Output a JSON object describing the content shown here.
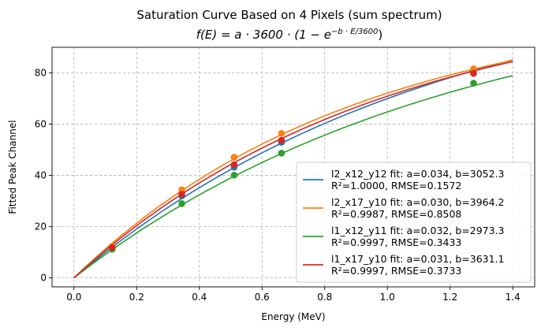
{
  "chart_data": {
    "type": "line",
    "title": "Saturation Curve Based on 4 Pixels (sum spectrum)",
    "subtitle": {
      "pre": "f(E) = a · 3600 · (1 − e",
      "sup": "−b · E/3600",
      "post": ")"
    },
    "xlabel": "Energy (MeV)",
    "ylabel": "Fitted Peak Channel",
    "xlim": [
      -0.07,
      1.47
    ],
    "ylim": [
      -3.5,
      90
    ],
    "xticks": [
      0.0,
      0.2,
      0.4,
      0.6,
      0.8,
      1.0,
      1.2,
      1.4
    ],
    "xtick_labels": [
      "0.0",
      "0.2",
      "0.4",
      "0.6",
      "0.8",
      "1.0",
      "1.2",
      "1.4"
    ],
    "yticks": [
      0,
      20,
      40,
      60,
      80
    ],
    "ytick_labels": [
      "0",
      "20",
      "40",
      "60",
      "80"
    ],
    "grid": true,
    "legend_position": "lower-right",
    "fit_function": "a*3600*(1-exp(-b*E/3600))",
    "fit_x_range": [
      0,
      1.4
    ],
    "series": [
      {
        "name": "l2_x12_y12",
        "color": "#1f77b4",
        "a": 0.034,
        "b": 3052.3,
        "legend_line1": "l2_x12_y12 fit: a=0.034, b=3052.3",
        "legend_line2": "R²=1.0000, RMSE=0.1572",
        "points": [
          [
            0.122,
            11.9
          ],
          [
            0.344,
            32.0
          ],
          [
            0.511,
            43.2
          ],
          [
            0.662,
            52.9
          ],
          [
            1.275,
            80.6
          ]
        ]
      },
      {
        "name": "l2_x17_y10",
        "color": "#ff7f0e",
        "a": 0.03,
        "b": 3964.2,
        "legend_line1": "l2_x17_y10 fit: a=0.030, b=3964.2",
        "legend_line2": "R²=0.9987, RMSE=0.8508",
        "points": [
          [
            0.122,
            12.3
          ],
          [
            0.344,
            34.4
          ],
          [
            0.511,
            47.1
          ],
          [
            0.662,
            56.4
          ],
          [
            1.275,
            81.6
          ]
        ]
      },
      {
        "name": "l1_x12_y11",
        "color": "#2ca02c",
        "a": 0.032,
        "b": 2973.3,
        "legend_line1": "l1_x12_y11 fit: a=0.032, b=2973.3",
        "legend_line2": "R²=0.9997, RMSE=0.3433",
        "points": [
          [
            0.122,
            11.2
          ],
          [
            0.344,
            29.0
          ],
          [
            0.511,
            40.1
          ],
          [
            0.662,
            48.7
          ],
          [
            1.275,
            76.0
          ]
        ]
      },
      {
        "name": "l1_x17_y10",
        "color": "#d62728",
        "a": 0.031,
        "b": 3631.1,
        "legend_line1": "l1_x17_y10 fit: a=0.031, b=3631.1",
        "legend_line2": "R²=0.9997, RMSE=0.3733",
        "points": [
          [
            0.122,
            11.9
          ],
          [
            0.344,
            32.6
          ],
          [
            0.511,
            44.2
          ],
          [
            0.662,
            53.7
          ],
          [
            1.275,
            79.8
          ]
        ]
      }
    ]
  }
}
